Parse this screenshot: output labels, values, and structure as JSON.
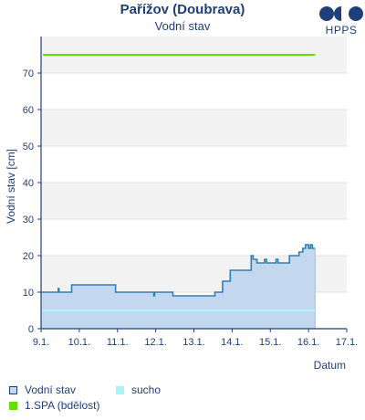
{
  "header": {
    "title": "Pařížov (Doubrava)",
    "subtitle": "Vodní stav",
    "logo_text": "HPPS"
  },
  "legend": {
    "items": [
      {
        "label": "Vodní stav",
        "color": "#c3d8ee",
        "border": "#1f3f7a"
      },
      {
        "label": "sucho",
        "color": "#aaf5f5",
        "border": "#aaf5f5"
      },
      {
        "label": "1.SPA (bdělost)",
        "color": "#66dd00",
        "border": "#66dd00"
      }
    ]
  },
  "chart_data": {
    "type": "area",
    "title": "Pařížov (Doubrava)",
    "subtitle": "Vodní stav",
    "xlabel": "Datum",
    "ylabel": "Vodní stav [cm]",
    "xlim": [
      9,
      17
    ],
    "ylim": [
      0,
      80
    ],
    "x_ticks": [
      "9.1.",
      "10.1.",
      "11.1.",
      "12.1.",
      "13.1.",
      "14.1.",
      "15.1.",
      "16.1.",
      "17.1."
    ],
    "y_ticks": [
      0,
      10,
      20,
      30,
      40,
      50,
      60,
      70
    ],
    "grid": "horizontal bands",
    "series": [
      {
        "name": "Vodní stav",
        "color": "#2f7fb8",
        "fill": "#c3d8ee",
        "points": [
          [
            9.0,
            10
          ],
          [
            9.45,
            10
          ],
          [
            9.45,
            11
          ],
          [
            9.47,
            11
          ],
          [
            9.47,
            10
          ],
          [
            9.8,
            10
          ],
          [
            9.8,
            12
          ],
          [
            10.95,
            12
          ],
          [
            10.95,
            10
          ],
          [
            11.95,
            10
          ],
          [
            11.95,
            9
          ],
          [
            11.97,
            9
          ],
          [
            11.97,
            10
          ],
          [
            12.45,
            10
          ],
          [
            12.45,
            9
          ],
          [
            13.55,
            9
          ],
          [
            13.55,
            10
          ],
          [
            13.75,
            10
          ],
          [
            13.75,
            13
          ],
          [
            13.95,
            13
          ],
          [
            13.95,
            16
          ],
          [
            14.5,
            16
          ],
          [
            14.5,
            20
          ],
          [
            14.55,
            20
          ],
          [
            14.55,
            19
          ],
          [
            14.65,
            19
          ],
          [
            14.65,
            18
          ],
          [
            14.85,
            18
          ],
          [
            14.85,
            19
          ],
          [
            14.9,
            19
          ],
          [
            14.9,
            18
          ],
          [
            15.15,
            18
          ],
          [
            15.15,
            19
          ],
          [
            15.2,
            19
          ],
          [
            15.2,
            18
          ],
          [
            15.5,
            18
          ],
          [
            15.5,
            20
          ],
          [
            15.75,
            20
          ],
          [
            15.75,
            21
          ],
          [
            15.85,
            21
          ],
          [
            15.85,
            22
          ],
          [
            15.92,
            22
          ],
          [
            15.92,
            23
          ],
          [
            16.0,
            23
          ],
          [
            16.0,
            22
          ],
          [
            16.05,
            22
          ],
          [
            16.05,
            23
          ],
          [
            16.1,
            23
          ],
          [
            16.1,
            22
          ],
          [
            16.17,
            22
          ]
        ]
      },
      {
        "name": "sucho",
        "color": "#aaf5f5",
        "points": [
          [
            9.0,
            5
          ],
          [
            16.17,
            5
          ]
        ]
      },
      {
        "name": "1.SPA (bdělost)",
        "color": "#66dd00",
        "points": [
          [
            9.05,
            75
          ],
          [
            16.17,
            75
          ]
        ]
      }
    ]
  }
}
